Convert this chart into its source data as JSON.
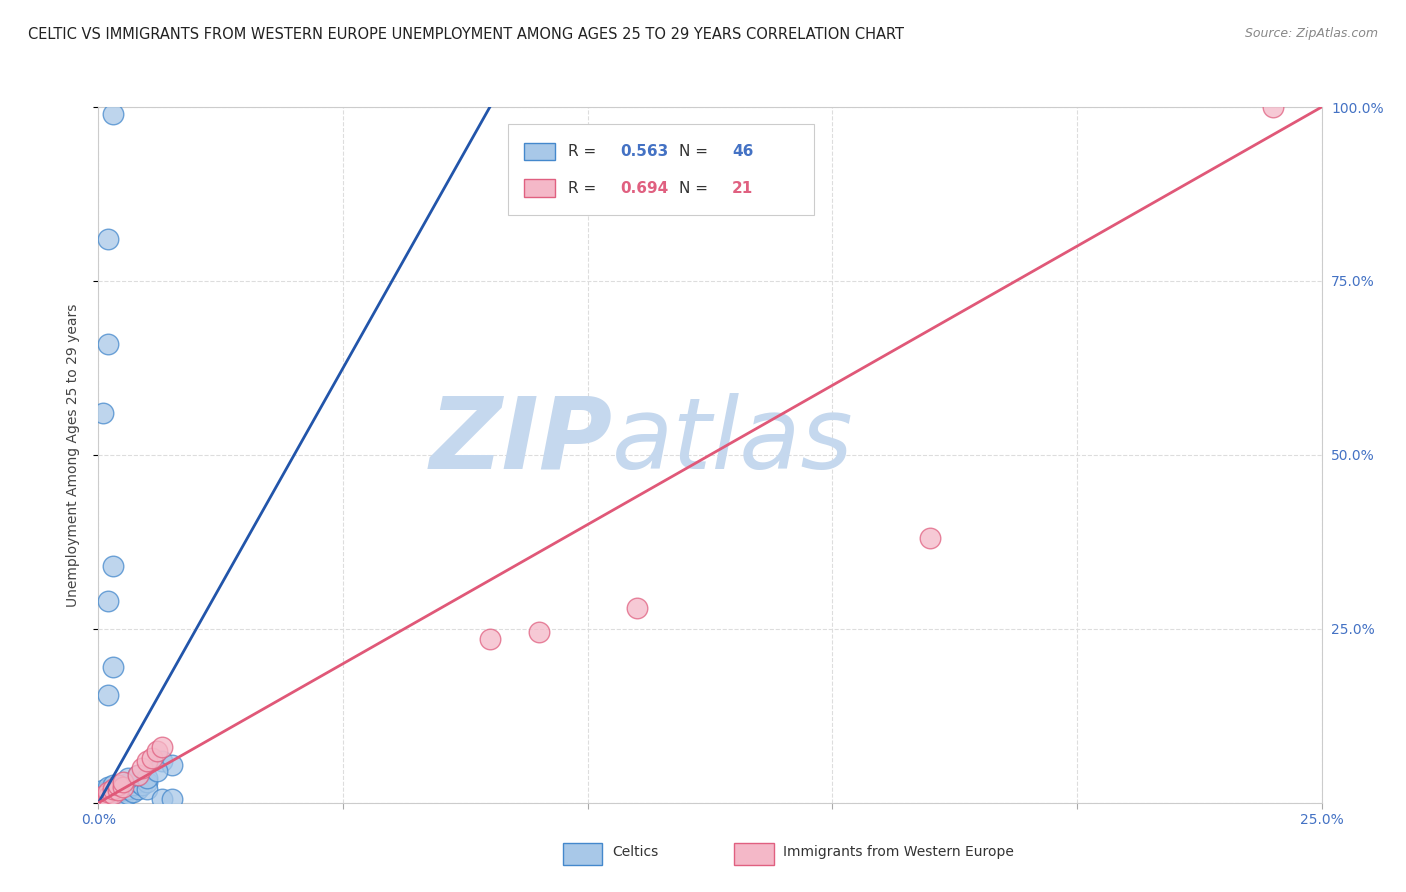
{
  "title": "CELTIC VS IMMIGRANTS FROM WESTERN EUROPE UNEMPLOYMENT AMONG AGES 25 TO 29 YEARS CORRELATION CHART",
  "source": "Source: ZipAtlas.com",
  "ylabel": "Unemployment Among Ages 25 to 29 years",
  "xlim": [
    0,
    0.25
  ],
  "ylim": [
    0,
    1.0
  ],
  "xtick_vals": [
    0.0,
    0.05,
    0.1,
    0.15,
    0.2,
    0.25
  ],
  "xtick_labels": [
    "0.0%",
    "",
    "",
    "",
    "",
    "25.0%"
  ],
  "ytick_vals": [
    0.0,
    0.25,
    0.5,
    0.75,
    1.0
  ],
  "ytick_labels": [
    "",
    "25.0%",
    "50.0%",
    "75.0%",
    "100.0%"
  ],
  "blue_R": "0.563",
  "blue_N": "46",
  "pink_R": "0.694",
  "pink_N": "21",
  "blue_fill": "#a8c8e8",
  "pink_fill": "#f4b8c8",
  "blue_edge": "#4488cc",
  "pink_edge": "#e06080",
  "blue_line_color": "#2255aa",
  "pink_line_color": "#e05878",
  "blue_line_x": [
    0.0,
    0.08
  ],
  "blue_line_y": [
    0.0,
    1.0
  ],
  "pink_line_x": [
    0.0,
    0.25
  ],
  "pink_line_y": [
    0.0,
    1.0
  ],
  "blue_points": [
    [
      0.001,
      0.005
    ],
    [
      0.001,
      0.008
    ],
    [
      0.001,
      0.012
    ],
    [
      0.001,
      0.018
    ],
    [
      0.002,
      0.005
    ],
    [
      0.002,
      0.008
    ],
    [
      0.002,
      0.012
    ],
    [
      0.002,
      0.018
    ],
    [
      0.002,
      0.022
    ],
    [
      0.003,
      0.005
    ],
    [
      0.003,
      0.01
    ],
    [
      0.003,
      0.015
    ],
    [
      0.003,
      0.02
    ],
    [
      0.003,
      0.025
    ],
    [
      0.004,
      0.008
    ],
    [
      0.004,
      0.015
    ],
    [
      0.004,
      0.022
    ],
    [
      0.005,
      0.01
    ],
    [
      0.005,
      0.018
    ],
    [
      0.005,
      0.025
    ],
    [
      0.006,
      0.012
    ],
    [
      0.006,
      0.02
    ],
    [
      0.006,
      0.028
    ],
    [
      0.007,
      0.015
    ],
    [
      0.007,
      0.025
    ],
    [
      0.008,
      0.02
    ],
    [
      0.008,
      0.03
    ],
    [
      0.009,
      0.025
    ],
    [
      0.01,
      0.03
    ],
    [
      0.01,
      0.02
    ],
    [
      0.013,
      0.06
    ],
    [
      0.015,
      0.055
    ],
    [
      0.002,
      0.155
    ],
    [
      0.003,
      0.195
    ],
    [
      0.002,
      0.29
    ],
    [
      0.003,
      0.34
    ],
    [
      0.013,
      0.005
    ],
    [
      0.015,
      0.005
    ],
    [
      0.001,
      0.56
    ],
    [
      0.002,
      0.66
    ],
    [
      0.002,
      0.81
    ],
    [
      0.003,
      0.99
    ],
    [
      0.006,
      0.035
    ],
    [
      0.008,
      0.04
    ],
    [
      0.01,
      0.035
    ],
    [
      0.012,
      0.045
    ]
  ],
  "pink_points": [
    [
      0.001,
      0.005
    ],
    [
      0.001,
      0.01
    ],
    [
      0.002,
      0.008
    ],
    [
      0.002,
      0.015
    ],
    [
      0.003,
      0.012
    ],
    [
      0.003,
      0.02
    ],
    [
      0.004,
      0.018
    ],
    [
      0.004,
      0.025
    ],
    [
      0.005,
      0.022
    ],
    [
      0.005,
      0.03
    ],
    [
      0.008,
      0.04
    ],
    [
      0.009,
      0.05
    ],
    [
      0.01,
      0.06
    ],
    [
      0.011,
      0.065
    ],
    [
      0.012,
      0.075
    ],
    [
      0.013,
      0.08
    ],
    [
      0.08,
      0.235
    ],
    [
      0.09,
      0.245
    ],
    [
      0.11,
      0.28
    ],
    [
      0.17,
      0.38
    ],
    [
      0.24,
      1.0
    ]
  ],
  "watermark_zip": "ZIP",
  "watermark_atlas": "atlas",
  "watermark_color_zip": "#c5d8ee",
  "watermark_color_atlas": "#c5d8ee",
  "legend_blue_text_color": "#4472c4",
  "legend_pink_text_color": "#e06080",
  "tick_color": "#4472c4",
  "title_color": "#222222",
  "source_color": "#888888",
  "ylabel_color": "#444444",
  "grid_color": "#dddddd",
  "bg_color": "#ffffff"
}
